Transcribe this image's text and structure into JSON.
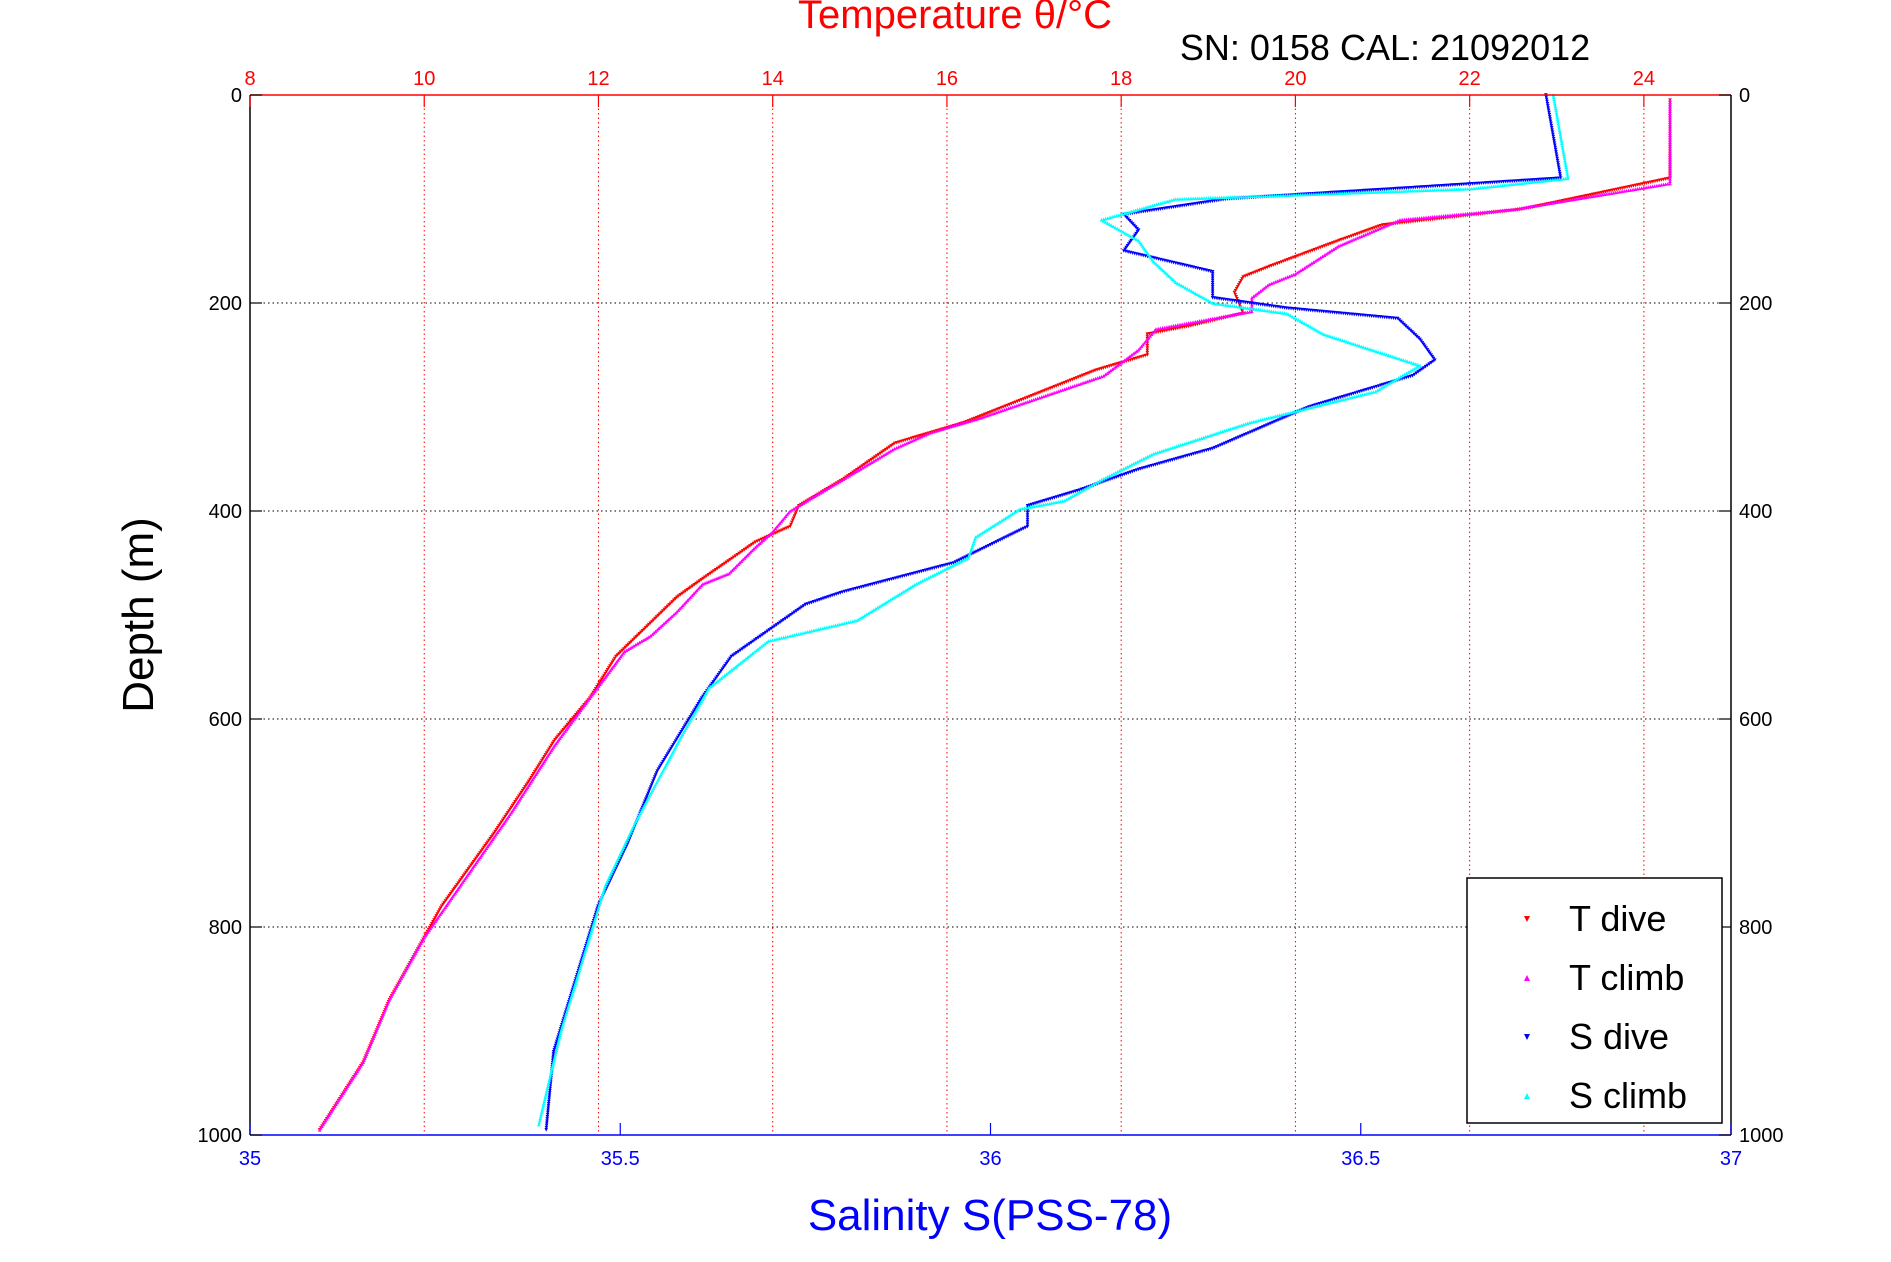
{
  "chart_data": {
    "type": "scatter",
    "title": "Temperature θ/°C",
    "subtitle": "SN: 0158  CAL: 21092012",
    "xlabel": "Salinity S(PSS-78)",
    "ylabel": "Depth (m)",
    "x_top": {
      "label": "Temperature θ/°C",
      "range": [
        8,
        25
      ],
      "ticks": [
        "8",
        "10",
        "12",
        "14",
        "16",
        "18",
        "20",
        "22",
        "24"
      ],
      "color": "#ff0000"
    },
    "x_bottom": {
      "label": "Salinity S(PSS-78)",
      "range": [
        35,
        37
      ],
      "ticks": [
        "35",
        "35.5",
        "36",
        "36.5",
        "37"
      ],
      "color": "#0000ff"
    },
    "y": {
      "range": [
        0,
        1000
      ],
      "reversed": true,
      "ticks": [
        "0",
        "200",
        "400",
        "600",
        "800",
        "1000"
      ]
    },
    "grid": true,
    "legend_position": "bottom-right",
    "series": [
      {
        "name": "T dive",
        "axis": "temperature",
        "color": "#ff0000",
        "marker": "triangle-down",
        "points": [
          [
            24.3,
            5
          ],
          [
            24.3,
            80
          ],
          [
            22.6,
            110
          ],
          [
            21,
            125
          ],
          [
            20.5,
            140
          ],
          [
            19.7,
            165
          ],
          [
            19.4,
            175
          ],
          [
            19.3,
            190
          ],
          [
            19.4,
            210
          ],
          [
            18.8,
            222
          ],
          [
            18.3,
            230
          ],
          [
            18.3,
            250
          ],
          [
            17.7,
            265
          ],
          [
            16.2,
            315
          ],
          [
            15.4,
            335
          ],
          [
            14.8,
            370
          ],
          [
            14.3,
            395
          ],
          [
            14.2,
            415
          ],
          [
            13.8,
            430
          ],
          [
            13.2,
            465
          ],
          [
            12.9,
            483
          ],
          [
            12.2,
            540
          ],
          [
            11.9,
            580
          ],
          [
            11.5,
            620
          ],
          [
            11.2,
            660
          ],
          [
            10.8,
            710
          ],
          [
            10.2,
            780
          ],
          [
            10.0,
            810
          ],
          [
            9.6,
            870
          ],
          [
            9.3,
            930
          ],
          [
            8.8,
            995
          ]
        ]
      },
      {
        "name": "T climb",
        "axis": "temperature",
        "color": "#ff00ff",
        "marker": "triangle-up",
        "points": [
          [
            24.3,
            5
          ],
          [
            24.3,
            85
          ],
          [
            22.5,
            110
          ],
          [
            21.2,
            120
          ],
          [
            20.5,
            145
          ],
          [
            20,
            172
          ],
          [
            19.7,
            182
          ],
          [
            19.5,
            195
          ],
          [
            19.5,
            208
          ],
          [
            18.4,
            225
          ],
          [
            18.2,
            245
          ],
          [
            17.8,
            270
          ],
          [
            16.4,
            310
          ],
          [
            15.8,
            325
          ],
          [
            15.4,
            340
          ],
          [
            14.9,
            365
          ],
          [
            14.2,
            400
          ],
          [
            14.0,
            420
          ],
          [
            13.8,
            435
          ],
          [
            13.5,
            460
          ],
          [
            13.2,
            470
          ],
          [
            12.9,
            497
          ],
          [
            12.6,
            520
          ],
          [
            12.3,
            535
          ],
          [
            11.9,
            580
          ],
          [
            11.5,
            625
          ],
          [
            11.0,
            690
          ],
          [
            10.5,
            750
          ],
          [
            10.0,
            810
          ],
          [
            9.6,
            870
          ],
          [
            9.3,
            930
          ],
          [
            8.8,
            995
          ]
        ]
      },
      {
        "name": "S dive",
        "axis": "salinity",
        "color": "#0000ff",
        "marker": "triangle-down",
        "points": [
          [
            36.75,
            0
          ],
          [
            36.77,
            80
          ],
          [
            36.55,
            90
          ],
          [
            36.32,
            100
          ],
          [
            36.18,
            115
          ],
          [
            36.2,
            130
          ],
          [
            36.18,
            150
          ],
          [
            36.3,
            170
          ],
          [
            36.3,
            195
          ],
          [
            36.4,
            205
          ],
          [
            36.55,
            215
          ],
          [
            36.58,
            235
          ],
          [
            36.6,
            255
          ],
          [
            36.57,
            270
          ],
          [
            36.43,
            300
          ],
          [
            36.3,
            340
          ],
          [
            36.2,
            360
          ],
          [
            36.12,
            380
          ],
          [
            36.05,
            395
          ],
          [
            36.05,
            415
          ],
          [
            35.95,
            450
          ],
          [
            35.8,
            478
          ],
          [
            35.75,
            490
          ],
          [
            35.65,
            540
          ],
          [
            35.61,
            580
          ],
          [
            35.55,
            650
          ],
          [
            35.51,
            720
          ],
          [
            35.47,
            780
          ],
          [
            35.44,
            850
          ],
          [
            35.41,
            920
          ],
          [
            35.4,
            995
          ]
        ]
      },
      {
        "name": "S climb",
        "axis": "salinity",
        "color": "#00ffff",
        "marker": "triangle-up",
        "points": [
          [
            36.76,
            0
          ],
          [
            36.78,
            80
          ],
          [
            36.65,
            90
          ],
          [
            36.25,
            100
          ],
          [
            36.15,
            120
          ],
          [
            36.2,
            140
          ],
          [
            36.22,
            160
          ],
          [
            36.25,
            180
          ],
          [
            36.3,
            200
          ],
          [
            36.4,
            210
          ],
          [
            36.45,
            230
          ],
          [
            36.58,
            260
          ],
          [
            36.52,
            285
          ],
          [
            36.35,
            315
          ],
          [
            36.22,
            345
          ],
          [
            36.15,
            370
          ],
          [
            36.1,
            390
          ],
          [
            36.04,
            398
          ],
          [
            35.98,
            425
          ],
          [
            35.97,
            445
          ],
          [
            35.9,
            470
          ],
          [
            35.82,
            505
          ],
          [
            35.7,
            525
          ],
          [
            35.62,
            570
          ],
          [
            35.58,
            620
          ],
          [
            35.52,
            700
          ],
          [
            35.48,
            760
          ],
          [
            35.45,
            830
          ],
          [
            35.42,
            900
          ],
          [
            35.39,
            990
          ]
        ]
      }
    ]
  }
}
